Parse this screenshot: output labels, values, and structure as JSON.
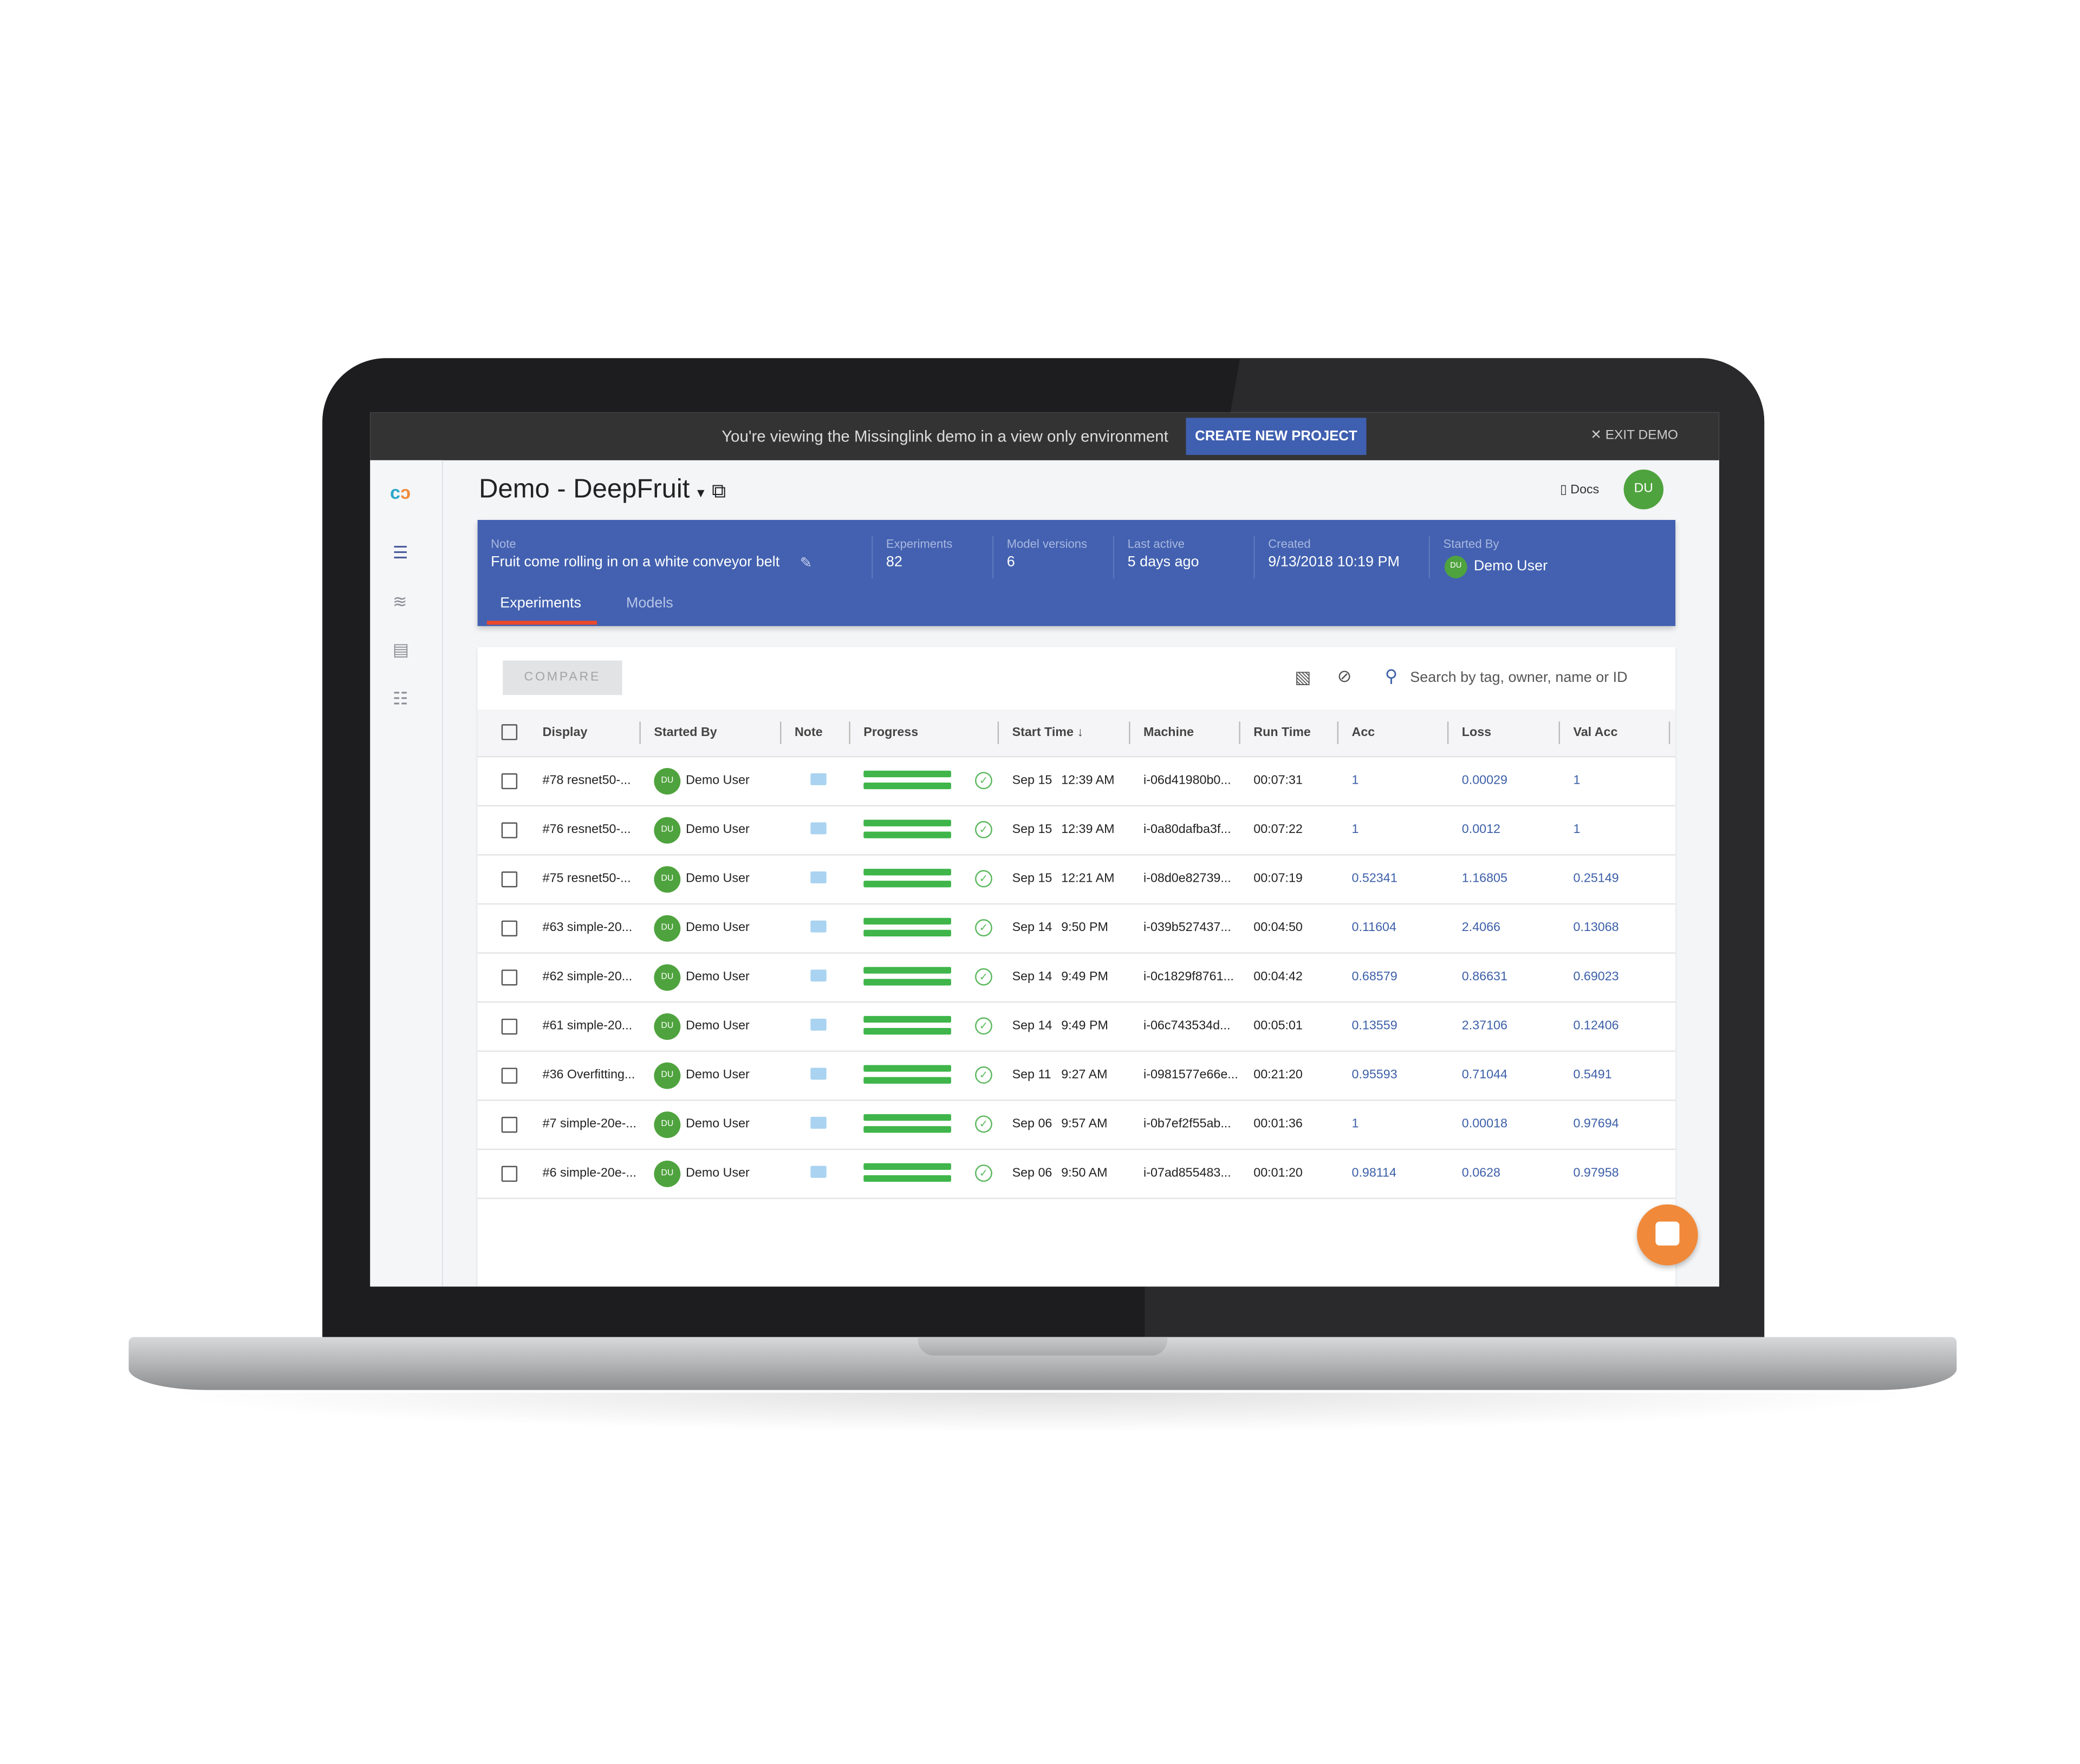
{
  "banner": {
    "message": "You're viewing the Missinglink demo in a view only environment",
    "create_button": "CREATE NEW PROJECT",
    "exit_label": "EXIT DEMO"
  },
  "sidebar": {
    "icons": [
      "missinglink-logo",
      "experiments-list-icon",
      "data-icon",
      "resources-icon",
      "tasks-icon"
    ]
  },
  "header": {
    "project_title": "Demo - DeepFruit",
    "docs_label": "Docs",
    "user_initials": "DU"
  },
  "project_panel": {
    "note_label": "Note",
    "note_value": "Fruit come rolling in on a white conveyor belt",
    "experiments_label": "Experiments",
    "experiments_value": "82",
    "model_versions_label": "Model versions",
    "model_versions_value": "6",
    "last_active_label": "Last active",
    "last_active_value": "5 days ago",
    "created_label": "Created",
    "created_value": "9/13/2018 10:19 PM",
    "started_by_label": "Started By",
    "started_by_value": "Demo User",
    "started_by_initials": "DU",
    "tabs": [
      {
        "label": "Experiments",
        "active": true
      },
      {
        "label": "Models",
        "active": false
      }
    ]
  },
  "toolbar": {
    "compare_label": "COMPARE",
    "search_placeholder": "Search by tag, owner, name or ID"
  },
  "table": {
    "columns": [
      "Display",
      "Started By",
      "Note",
      "Progress",
      "Start Time",
      "Machine",
      "Run Time",
      "Acc",
      "Loss",
      "Val Acc"
    ],
    "sort": {
      "column": "Start Time",
      "direction": "descending"
    },
    "rows": [
      {
        "display": "#78 resnet50-...",
        "initials": "DU",
        "user": "Demo User",
        "progress": 100,
        "date": "Sep 15",
        "time": "12:39 AM",
        "machine": "i-06d41980b0...",
        "run_time": "00:07:31",
        "acc": "1",
        "loss": "0.00029",
        "val_acc": "1"
      },
      {
        "display": "#76 resnet50-...",
        "initials": "DU",
        "user": "Demo User",
        "progress": 100,
        "date": "Sep 15",
        "time": "12:39 AM",
        "machine": "i-0a80dafba3f...",
        "run_time": "00:07:22",
        "acc": "1",
        "loss": "0.0012",
        "val_acc": "1"
      },
      {
        "display": "#75 resnet50-...",
        "initials": "DU",
        "user": "Demo User",
        "progress": 100,
        "date": "Sep 15",
        "time": "12:21 AM",
        "machine": "i-08d0e82739...",
        "run_time": "00:07:19",
        "acc": "0.52341",
        "loss": "1.16805",
        "val_acc": "0.25149"
      },
      {
        "display": "#63 simple-20...",
        "initials": "DU",
        "user": "Demo User",
        "progress": 100,
        "date": "Sep 14",
        "time": "9:50 PM",
        "machine": "i-039b527437...",
        "run_time": "00:04:50",
        "acc": "0.11604",
        "loss": "2.4066",
        "val_acc": "0.13068"
      },
      {
        "display": "#62 simple-20...",
        "initials": "DU",
        "user": "Demo User",
        "progress": 100,
        "date": "Sep 14",
        "time": "9:49 PM",
        "machine": "i-0c1829f8761...",
        "run_time": "00:04:42",
        "acc": "0.68579",
        "loss": "0.86631",
        "val_acc": "0.69023"
      },
      {
        "display": "#61 simple-20...",
        "initials": "DU",
        "user": "Demo User",
        "progress": 100,
        "date": "Sep 14",
        "time": "9:49 PM",
        "machine": "i-06c743534d...",
        "run_time": "00:05:01",
        "acc": "0.13559",
        "loss": "2.37106",
        "val_acc": "0.12406"
      },
      {
        "display": "#36 Overfitting...",
        "initials": "DU",
        "user": "Demo User",
        "progress": 100,
        "date": "Sep 11",
        "time": "9:27 AM",
        "machine": "i-0981577e66e...",
        "run_time": "00:21:20",
        "acc": "0.95593",
        "loss": "0.71044",
        "val_acc": "0.5491"
      },
      {
        "display": "#7 simple-20e-...",
        "initials": "DU",
        "user": "Demo User",
        "progress": 100,
        "date": "Sep 06",
        "time": "9:57 AM",
        "machine": "i-0b7ef2f55ab...",
        "run_time": "00:01:36",
        "acc": "1",
        "loss": "0.00018",
        "val_acc": "0.97694"
      },
      {
        "display": "#6 simple-20e-...",
        "initials": "DU",
        "user": "Demo User",
        "progress": 100,
        "date": "Sep 06",
        "time": "9:50 AM",
        "machine": "i-07ad855483...",
        "run_time": "00:01:20",
        "acc": "0.98114",
        "loss": "0.0628",
        "val_acc": "0.97958"
      }
    ]
  },
  "colors": {
    "primary": "#4361b0",
    "banner": "#333333",
    "success": "#3fb54a",
    "avatar": "#4fa33e",
    "tab_indicator": "#e9492d",
    "chat_fab": "#f08a3a",
    "metric_text": "#3c5fa8"
  }
}
